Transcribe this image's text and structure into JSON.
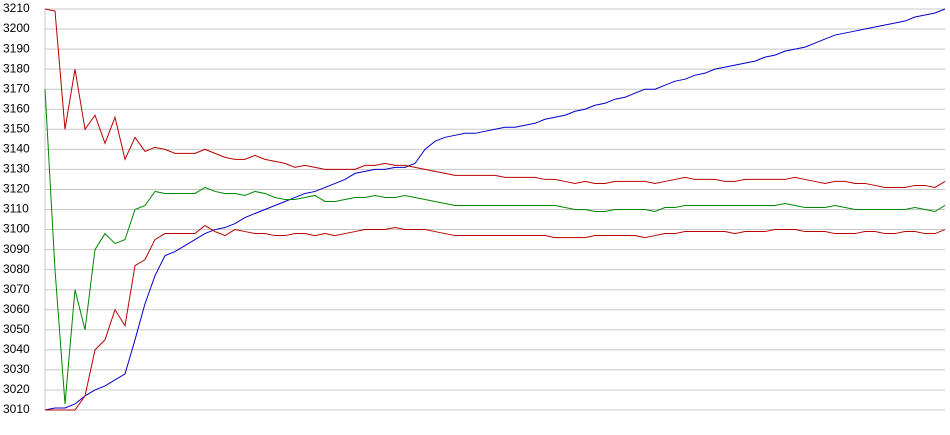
{
  "chart_data": {
    "type": "line",
    "ylim": [
      3010,
      3210
    ],
    "yticks": [
      3010,
      3020,
      3030,
      3040,
      3050,
      3060,
      3070,
      3080,
      3090,
      3100,
      3110,
      3120,
      3130,
      3140,
      3150,
      3160,
      3170,
      3180,
      3190,
      3200,
      3210
    ],
    "grid": true,
    "series": [
      {
        "color": "#0000cc",
        "values": [
          3010,
          3011,
          3011,
          3013,
          3017,
          3020,
          3022,
          3025,
          3028,
          3045,
          3063,
          3077,
          3087,
          3089,
          3092,
          3095,
          3098,
          3100,
          3101,
          3103,
          3106,
          3108,
          3110,
          3112,
          3114,
          3116,
          3118,
          3119,
          3121,
          3123,
          3125,
          3128,
          3129,
          3130,
          3130,
          3131,
          3131,
          3133,
          3140,
          3144,
          3146,
          3147,
          3148,
          3148,
          3149,
          3150,
          3151,
          3151,
          3152,
          3153,
          3155,
          3156,
          3157,
          3159,
          3160,
          3162,
          3163,
          3165,
          3166,
          3168,
          3170,
          3170,
          3172,
          3174,
          3175,
          3177,
          3178,
          3180,
          3181,
          3182,
          3183,
          3184,
          3186,
          3187,
          3189,
          3190,
          3191,
          3193,
          3195,
          3197,
          3198,
          3199,
          3200,
          3201,
          3202,
          3203,
          3204,
          3206,
          3207,
          3208,
          3210
        ]
      },
      {
        "color": "#bb0000",
        "values": [
          3210,
          3209,
          3150,
          3180,
          3150,
          3157,
          3143,
          3156,
          3135,
          3146,
          3139,
          3141,
          3140,
          3138,
          3138,
          3138,
          3140,
          3138,
          3136,
          3135,
          3135,
          3137,
          3135,
          3134,
          3133,
          3131,
          3132,
          3131,
          3130,
          3130,
          3130,
          3130,
          3132,
          3132,
          3133,
          3132,
          3132,
          3131,
          3130,
          3129,
          3128,
          3127,
          3127,
          3127,
          3127,
          3127,
          3126,
          3126,
          3126,
          3126,
          3125,
          3125,
          3124,
          3123,
          3124,
          3123,
          3123,
          3124,
          3124,
          3124,
          3124,
          3123,
          3124,
          3125,
          3126,
          3125,
          3125,
          3125,
          3124,
          3124,
          3125,
          3125,
          3125,
          3125,
          3125,
          3126,
          3125,
          3124,
          3123,
          3124,
          3124,
          3123,
          3123,
          3122,
          3121,
          3121,
          3121,
          3122,
          3122,
          3121,
          3124
        ]
      },
      {
        "color": "#008800",
        "values": [
          3170,
          3080,
          3013,
          3070,
          3050,
          3090,
          3098,
          3093,
          3095,
          3110,
          3112,
          3119,
          3118,
          3118,
          3118,
          3118,
          3121,
          3119,
          3118,
          3118,
          3117,
          3119,
          3118,
          3116,
          3115,
          3115,
          3116,
          3117,
          3114,
          3114,
          3115,
          3116,
          3116,
          3117,
          3116,
          3116,
          3117,
          3116,
          3115,
          3114,
          3113,
          3112,
          3112,
          3112,
          3112,
          3112,
          3112,
          3112,
          3112,
          3112,
          3112,
          3112,
          3111,
          3110,
          3110,
          3109,
          3109,
          3110,
          3110,
          3110,
          3110,
          3109,
          3111,
          3111,
          3112,
          3112,
          3112,
          3112,
          3112,
          3112,
          3112,
          3112,
          3112,
          3112,
          3113,
          3112,
          3111,
          3111,
          3111,
          3112,
          3111,
          3110,
          3110,
          3110,
          3110,
          3110,
          3110,
          3111,
          3110,
          3109,
          3112
        ]
      },
      {
        "color": "#bb0000",
        "values": [
          3010,
          3010,
          3010,
          3010,
          3017,
          3040,
          3045,
          3060,
          3052,
          3082,
          3085,
          3095,
          3098,
          3098,
          3098,
          3098,
          3102,
          3099,
          3097,
          3100,
          3099,
          3098,
          3098,
          3097,
          3097,
          3098,
          3098,
          3097,
          3098,
          3097,
          3098,
          3099,
          3100,
          3100,
          3100,
          3101,
          3100,
          3100,
          3100,
          3099,
          3098,
          3097,
          3097,
          3097,
          3097,
          3097,
          3097,
          3097,
          3097,
          3097,
          3097,
          3096,
          3096,
          3096,
          3096,
          3097,
          3097,
          3097,
          3097,
          3097,
          3096,
          3097,
          3098,
          3098,
          3099,
          3099,
          3099,
          3099,
          3099,
          3098,
          3099,
          3099,
          3099,
          3100,
          3100,
          3100,
          3099,
          3099,
          3099,
          3098,
          3098,
          3098,
          3099,
          3099,
          3098,
          3098,
          3099,
          3099,
          3098,
          3098,
          3100
        ]
      }
    ]
  }
}
